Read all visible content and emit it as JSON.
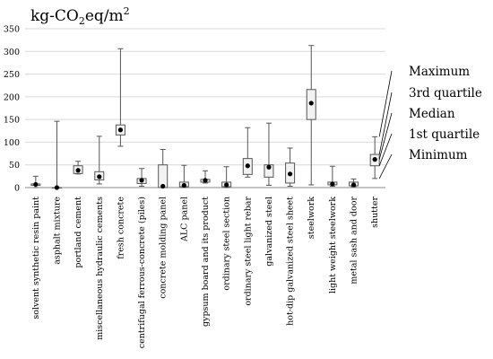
{
  "chart_data": {
    "type": "boxplot",
    "unit_label": {
      "main": "kg-CO",
      "sub": "2",
      "rest": "eq/m",
      "sup": "2"
    },
    "ylim": [
      0,
      350
    ],
    "yticks": [
      0,
      50,
      100,
      150,
      200,
      250,
      300,
      350
    ],
    "grid": true,
    "categories": [
      "solvent synthetic resin paint",
      "asphalt mixture",
      "portland cement",
      "miscellaneous hydraulic cements",
      "fresh concrete",
      "centrifugal ferrous-concrete (piles)",
      "concrete molding panel",
      "ALC panel",
      "gypsum board and its product",
      "ordinary steel section",
      "ordinary steel light rebar",
      "galvanized steel",
      "hot-dip galvanized steel sheet",
      "steelwork",
      "light weight steelwork",
      "metal sash and door",
      "shutter"
    ],
    "boxes": [
      {
        "min": 0,
        "q1": 5,
        "median": 7,
        "q3": 8,
        "max": 25
      },
      {
        "min": 0,
        "q1": 0,
        "median": 0,
        "q3": 0,
        "max": 146
      },
      {
        "min": 30,
        "q1": 31,
        "median": 38,
        "q3": 48,
        "max": 58
      },
      {
        "min": 8,
        "q1": 17,
        "median": 24,
        "q3": 35,
        "max": 113
      },
      {
        "min": 91,
        "q1": 116,
        "median": 127,
        "q3": 138,
        "max": 306
      },
      {
        "min": 3,
        "q1": 9,
        "median": 16,
        "q3": 20,
        "max": 42
      },
      {
        "min": 0,
        "q1": 0,
        "median": 3,
        "q3": 50,
        "max": 84
      },
      {
        "min": 0,
        "q1": 2,
        "median": 5,
        "q3": 12,
        "max": 49
      },
      {
        "min": 10,
        "q1": 12,
        "median": 16,
        "q3": 18,
        "max": 37
      },
      {
        "min": 0,
        "q1": 2,
        "median": 6,
        "q3": 12,
        "max": 46
      },
      {
        "min": 23,
        "q1": 29,
        "median": 48,
        "q3": 64,
        "max": 132
      },
      {
        "min": 5,
        "q1": 23,
        "median": 45,
        "q3": 50,
        "max": 142
      },
      {
        "min": 3,
        "q1": 10,
        "median": 30,
        "q3": 54,
        "max": 87
      },
      {
        "min": 6,
        "q1": 150,
        "median": 186,
        "q3": 216,
        "max": 313
      },
      {
        "min": 3,
        "q1": 6,
        "median": 8,
        "q3": 12,
        "max": 47
      },
      {
        "min": 2,
        "q1": 4,
        "median": 6,
        "q3": 12,
        "max": 19
      },
      {
        "min": 20,
        "q1": 48,
        "median": 62,
        "q3": 73,
        "max": 112
      }
    ],
    "legend": [
      "Maximum",
      "3rd quartile",
      "Median",
      "1st quartile",
      "Minimum"
    ]
  }
}
